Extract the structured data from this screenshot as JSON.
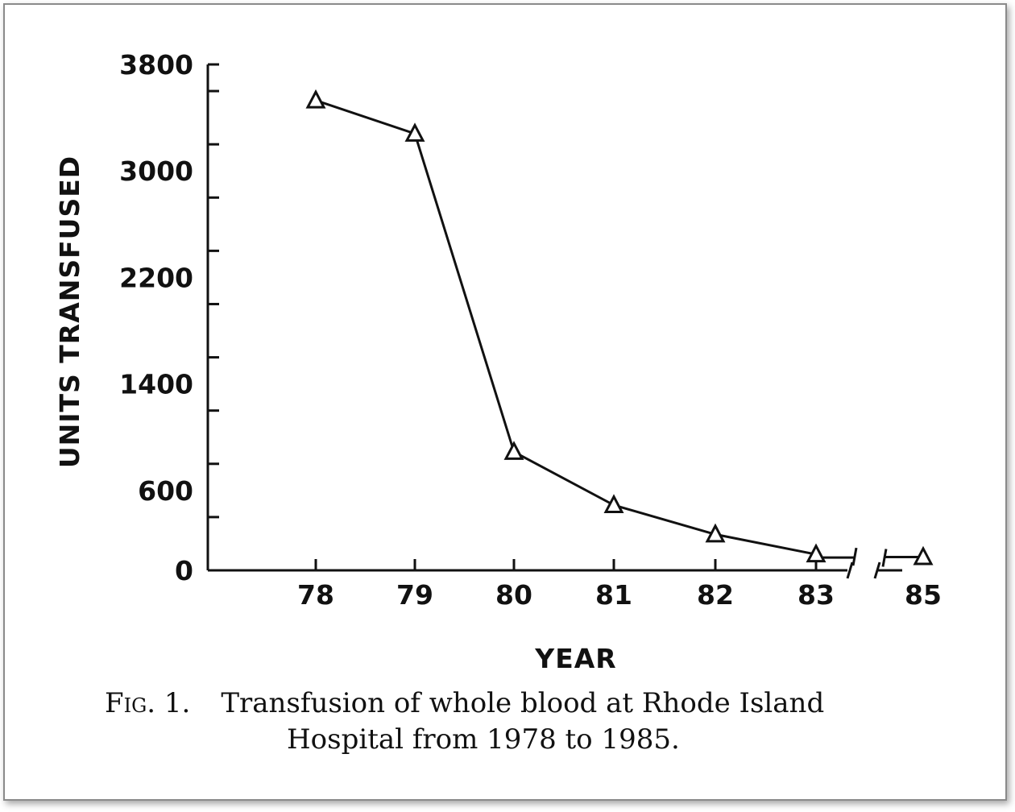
{
  "chart_data": {
    "type": "line",
    "title": "",
    "xlabel": "YEAR",
    "ylabel": "UNITS TRANSFUSED",
    "x": [
      "78",
      "79",
      "80",
      "81",
      "82",
      "83",
      "85"
    ],
    "series": [
      {
        "name": "",
        "marker": "open-triangle",
        "values": [
          3530,
          3280,
          890,
          490,
          270,
          120,
          100
        ]
      }
    ],
    "y_ticks": [
      0,
      600,
      1400,
      2200,
      3000,
      3800
    ],
    "ylim": [
      0,
      3800
    ],
    "axis_break": "between 83 and 85",
    "grid": false,
    "legend": "none"
  },
  "caption": {
    "label": "Fig. 1.",
    "line1": "Transfusion of whole blood at Rhode Island",
    "line2": "Hospital from 1978 to 1985."
  }
}
